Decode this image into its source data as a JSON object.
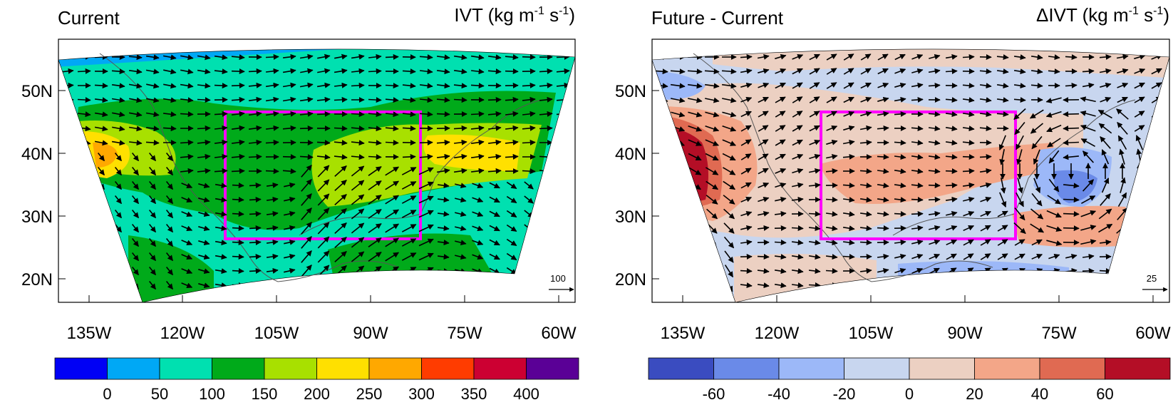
{
  "panels": [
    {
      "id": "current",
      "title": "Current",
      "units_prefix": "IVT (kg m",
      "units_exp1": "-1",
      "units_mid": " s",
      "units_exp2": "-1",
      "units_suffix": ")",
      "ref_vector_label": "100",
      "box_color": "#ff00ff",
      "colorbar": {
        "colors": [
          "#0000f5",
          "#00a8f5",
          "#00e0b0",
          "#00aa1a",
          "#a8e000",
          "#ffe000",
          "#ffa800",
          "#ff3c00",
          "#cc0032",
          "#5a0096"
        ],
        "labels": [
          "0",
          "50",
          "100",
          "150",
          "200",
          "250",
          "300",
          "350",
          "400"
        ]
      }
    },
    {
      "id": "future-minus-current",
      "title": "Future - Current",
      "units_prefix": "ΔIVT (kg m",
      "units_exp1": "-1",
      "units_mid": " s",
      "units_exp2": "-1",
      "units_suffix": ")",
      "ref_vector_label": "25",
      "box_color": "#ff00ff",
      "colorbar": {
        "colors": [
          "#3a4cc0",
          "#6a8ae8",
          "#9cb8f8",
          "#c8d6ef",
          "#ecd0c2",
          "#f3a688",
          "#e06a52",
          "#b40e26"
        ],
        "labels": [
          "-60",
          "-40",
          "-20",
          "0",
          "20",
          "40",
          "60"
        ]
      }
    }
  ],
  "axes": {
    "lat_labels": [
      "50N",
      "40N",
      "30N",
      "20N"
    ],
    "lon_labels": [
      "135W",
      "120W",
      "105W",
      "90W",
      "75W",
      "60W"
    ]
  }
}
